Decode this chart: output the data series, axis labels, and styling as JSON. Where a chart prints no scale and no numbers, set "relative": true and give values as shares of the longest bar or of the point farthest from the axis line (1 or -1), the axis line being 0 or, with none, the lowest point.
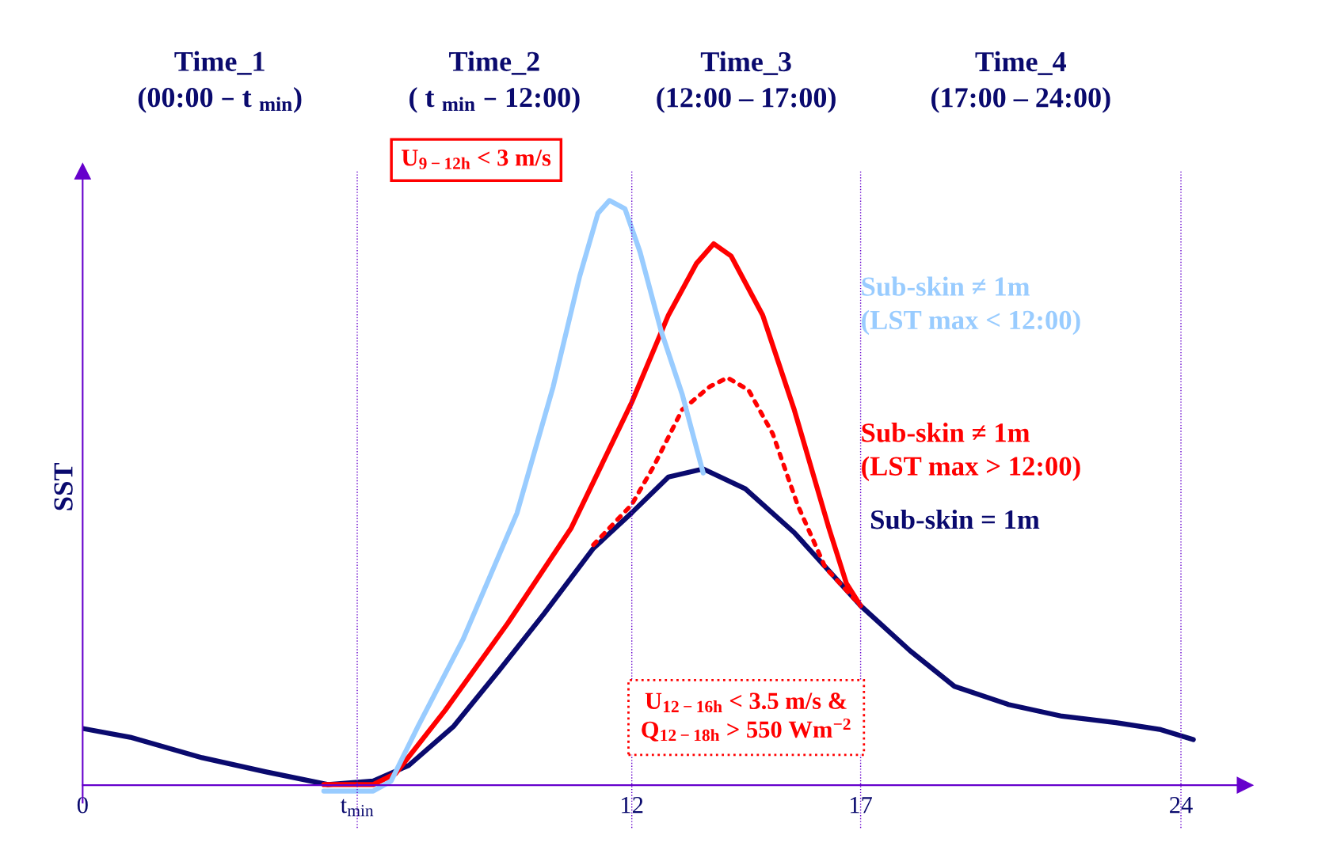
{
  "chart_data": {
    "type": "line",
    "relative": true,
    "ylabel": "SST",
    "xlim": [
      0,
      25.4
    ],
    "xticks": [
      0,
      {
        "value": 6,
        "label": "t$_{min}$"
      },
      12,
      17,
      24
    ],
    "tick_labels": "x",
    "grid": false,
    "legend": false,
    "marker": "none",
    "line_style": "solid",
    "ref_lines": [
      {
        "axis": "x",
        "value": 6,
        "color": "#6600cc",
        "line_style": "dotted"
      },
      {
        "axis": "x",
        "value": 12,
        "color": "#6600cc",
        "line_style": "dotted"
      },
      {
        "axis": "x",
        "value": 17,
        "color": "#6600cc",
        "line_style": "dotted"
      },
      {
        "axis": "x",
        "value": 24,
        "color": "#6600cc",
        "line_style": "dotted"
      }
    ],
    "annotations": [
      "Time_1\n(00:00 – t $_{min}$)",
      "Time_2\n( t $_{min}$ – 12:00)",
      "Time_3\n(12:00 – 17:00)",
      "Time_4\n(17:00 – 24:00)",
      "U$_{9−12h}$ < 3 m/s",
      "U$_{12−16h}$ < 3.5 m/s &\nQ$_{12−18h}$ > 550 Wm$^{−2}$"
    ],
    "series": [
      {
        "name": "Sub-skin = 1m",
        "color": "#0a0a6e",
        "x": [
          0,
          1.04,
          2.61,
          3.99,
          5.36,
          6.35,
          7.13,
          8.11,
          9.1,
          10.08,
          11.16,
          12,
          12.8,
          13.56,
          14.48,
          15.55,
          17,
          18.08,
          19.05,
          20.23,
          21.4,
          22.58,
          23.56,
          24.27
        ],
        "values": [
          0.097,
          0.082,
          0.047,
          0.023,
          0.001,
          0.007,
          0.034,
          0.101,
          0.196,
          0.293,
          0.405,
          0.466,
          0.527,
          0.541,
          0.507,
          0.432,
          0.307,
          0.23,
          0.169,
          0.138,
          0.118,
          0.107,
          0.095,
          0.078
        ]
      },
      {
        "name": "Sub-skin ≠ 1m\n(LST max > 12:00)",
        "color": "#ff0000",
        "x": [
          5.27,
          6.35,
          6.84,
          7.92,
          9.29,
          10.67,
          12,
          12.8,
          13.41,
          13.79,
          14.17,
          14.86,
          15.55,
          16.31,
          16.69,
          17
        ],
        "values": [
          0.001,
          0.001,
          0.02,
          0.128,
          0.277,
          0.439,
          0.655,
          0.804,
          0.892,
          0.926,
          0.905,
          0.804,
          0.642,
          0.439,
          0.345,
          0.307
        ]
      },
      {
        "color": "#ff0000",
        "line_style": "dotted",
        "x": [
          11.16,
          12,
          12.49,
          13.1,
          13.71,
          14.09,
          14.55,
          15.08,
          15.62,
          16.23,
          17
        ],
        "values": [
          0.411,
          0.48,
          0.547,
          0.642,
          0.682,
          0.697,
          0.676,
          0.601,
          0.48,
          0.372,
          0.307
        ]
      },
      {
        "name": "Sub-skin ≠ 1m\n(LST max < 12:00)",
        "color": "#99ccff",
        "x": [
          5.27,
          6.35,
          6.74,
          7.33,
          8.31,
          9.49,
          10.28,
          10.86,
          11.26,
          11.51,
          11.85,
          12.18,
          12.64,
          13.1,
          13.56
        ],
        "values": [
          -0.01,
          -0.01,
          0.007,
          0.101,
          0.249,
          0.465,
          0.681,
          0.87,
          0.978,
          1.0,
          0.986,
          0.912,
          0.777,
          0.669,
          0.534
        ]
      }
    ]
  }
}
